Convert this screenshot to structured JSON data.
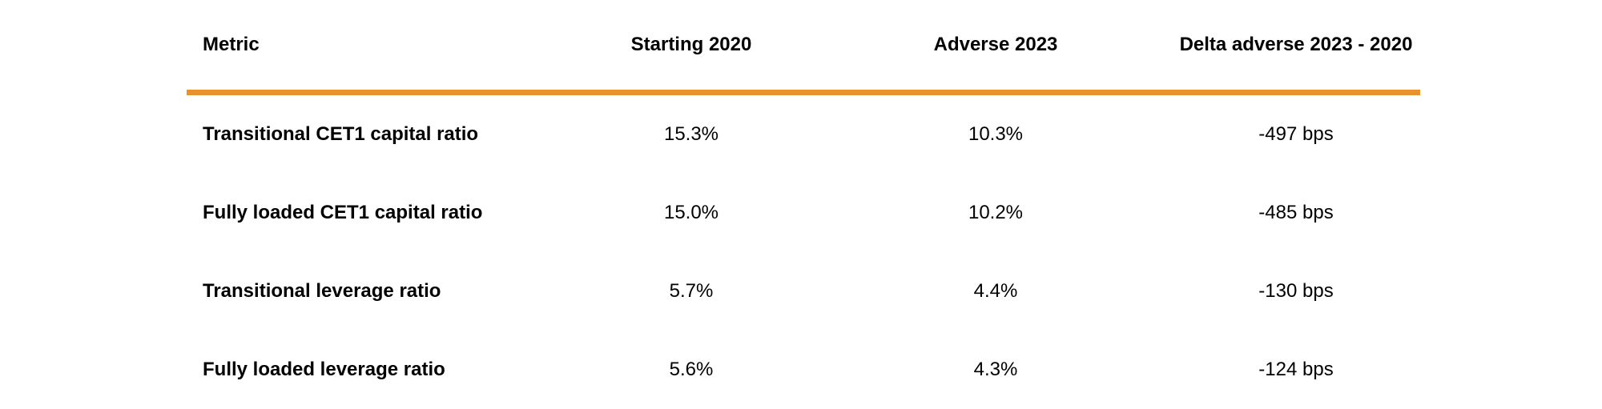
{
  "table": {
    "accent_color": "#e8912d",
    "headers": [
      "Metric",
      "Starting 2020",
      "Adverse 2023",
      "Delta adverse 2023 - 2020"
    ],
    "rows": [
      {
        "metric": "Transitional CET1 capital ratio",
        "starting_2020": "15.3%",
        "adverse_2023": "10.3%",
        "delta": "-497 bps"
      },
      {
        "metric": "Fully loaded CET1 capital ratio",
        "starting_2020": "15.0%",
        "adverse_2023": "10.2%",
        "delta": "-485 bps"
      },
      {
        "metric": "Transitional leverage ratio",
        "starting_2020": "5.7%",
        "adverse_2023": "4.4%",
        "delta": "-130 bps"
      },
      {
        "metric": "Fully loaded leverage ratio",
        "starting_2020": "5.6%",
        "adverse_2023": "4.3%",
        "delta": "-124 bps"
      }
    ]
  }
}
